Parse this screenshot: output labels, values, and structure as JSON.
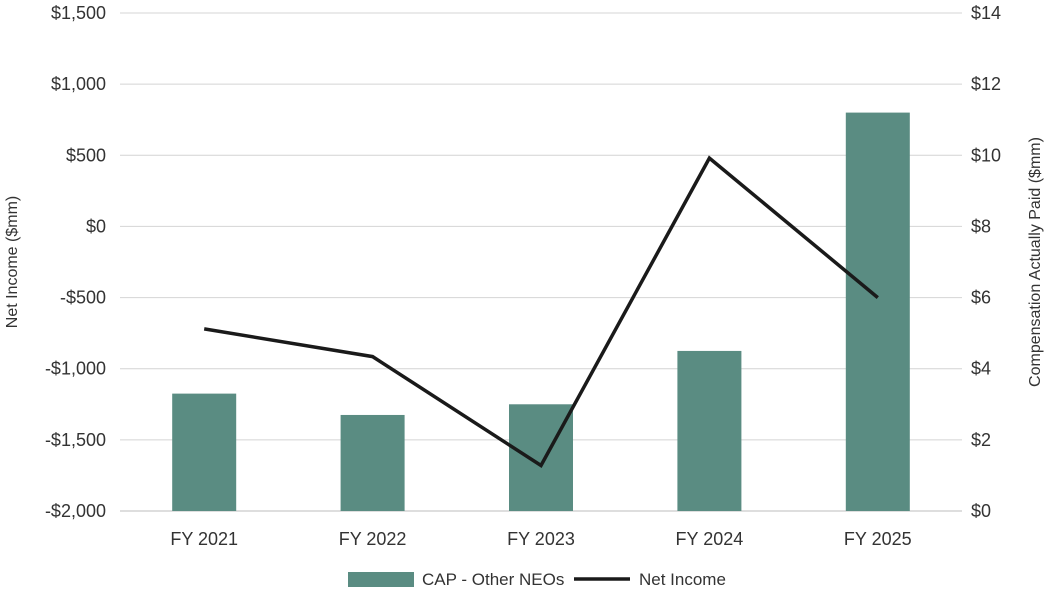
{
  "chart_data": {
    "type": "bar",
    "categories": [
      "FY 2021",
      "FY 2022",
      "FY 2023",
      "FY 2024",
      "FY 2025"
    ],
    "series": [
      {
        "name": "CAP - Other NEOs",
        "type": "bar",
        "axis": "right",
        "values": [
          3.3,
          2.7,
          3.0,
          4.5,
          11.2
        ],
        "color": "#5a8c82"
      },
      {
        "name": "Net Income",
        "type": "line",
        "axis": "left",
        "values": [
          -720,
          -915,
          -1680,
          480,
          -500
        ],
        "color": "#1a1a1a"
      }
    ],
    "y_left": {
      "label": "Net Income ($mm)",
      "range": [
        -2000,
        1500
      ],
      "ticks": [
        -2000,
        -1500,
        -1000,
        -500,
        0,
        500,
        1000,
        1500
      ],
      "tick_labels": [
        "-$2,000",
        "-$1,500",
        "-$1,000",
        "-$500",
        "$0",
        "$500",
        "$1,000",
        "$1,500"
      ]
    },
    "y_right": {
      "label": "Compensation Actually Paid ($mm)",
      "range": [
        0,
        14
      ],
      "ticks": [
        0,
        2,
        4,
        6,
        8,
        10,
        12,
        14
      ],
      "tick_labels": [
        "$0",
        "$2",
        "$4",
        "$6",
        "$8",
        "$10",
        "$12",
        "$14"
      ]
    },
    "grid": true,
    "legend_position": "bottom-center"
  }
}
